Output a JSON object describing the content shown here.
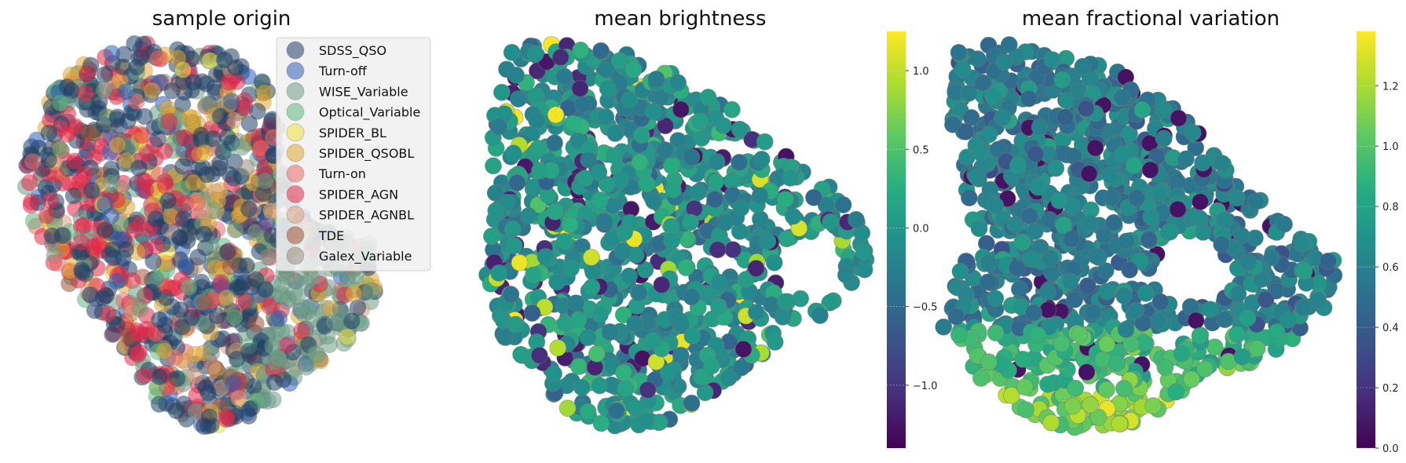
{
  "chart_data": [
    {
      "type": "scatter",
      "title": "sample origin",
      "legend_placement": "top-right",
      "grid": false,
      "axes_visible": false,
      "colors": {
        "SDSS_QSO": "#1f3f66",
        "Turn-off": "#2e5fb8",
        "WISE_Variable": "#6e9c86",
        "Optical_Variable": "#5cba7e",
        "SPIDER_BL": "#f0e040",
        "SPIDER_QSOBL": "#e3a530",
        "Turn-on": "#ec6a6a",
        "SPIDER_AGN": "#e62848",
        "SPIDER_AGNBL": "#d8a07c",
        "TDE": "#a05234",
        "Galex_Variable": "#958a7a"
      },
      "series": [
        {
          "name": "SDSS_QSO"
        },
        {
          "name": "Turn-off"
        },
        {
          "name": "WISE_Variable"
        },
        {
          "name": "Optical_Variable"
        },
        {
          "name": "SPIDER_BL"
        },
        {
          "name": "SPIDER_QSOBL"
        },
        {
          "name": "Turn-on"
        },
        {
          "name": "SPIDER_AGN"
        },
        {
          "name": "SPIDER_AGNBL"
        },
        {
          "name": "TDE"
        },
        {
          "name": "Galex_Variable"
        }
      ]
    },
    {
      "type": "scatter",
      "title": "mean brightness",
      "colormap": "viridis",
      "colorbar": {
        "range": [
          -1.4,
          1.25
        ],
        "ticks": [
          1.0,
          0.5,
          0.0,
          -0.5,
          -1.0
        ],
        "tick_labels": [
          "1.0",
          "0.5",
          "0.0",
          "−0.5",
          "−1.0"
        ]
      },
      "grid": false,
      "axes_visible": false
    },
    {
      "type": "scatter",
      "title": "mean fractional variation",
      "colormap": "viridis",
      "colorbar": {
        "range": [
          0.0,
          1.38
        ],
        "ticks": [
          1.2,
          1.0,
          0.8,
          0.6,
          0.4,
          0.2,
          0.0
        ],
        "tick_labels": [
          "1.2",
          "1.0",
          "0.8",
          "0.6",
          "0.4",
          "0.2",
          "0.0"
        ]
      },
      "grid": false,
      "axes_visible": false
    }
  ]
}
